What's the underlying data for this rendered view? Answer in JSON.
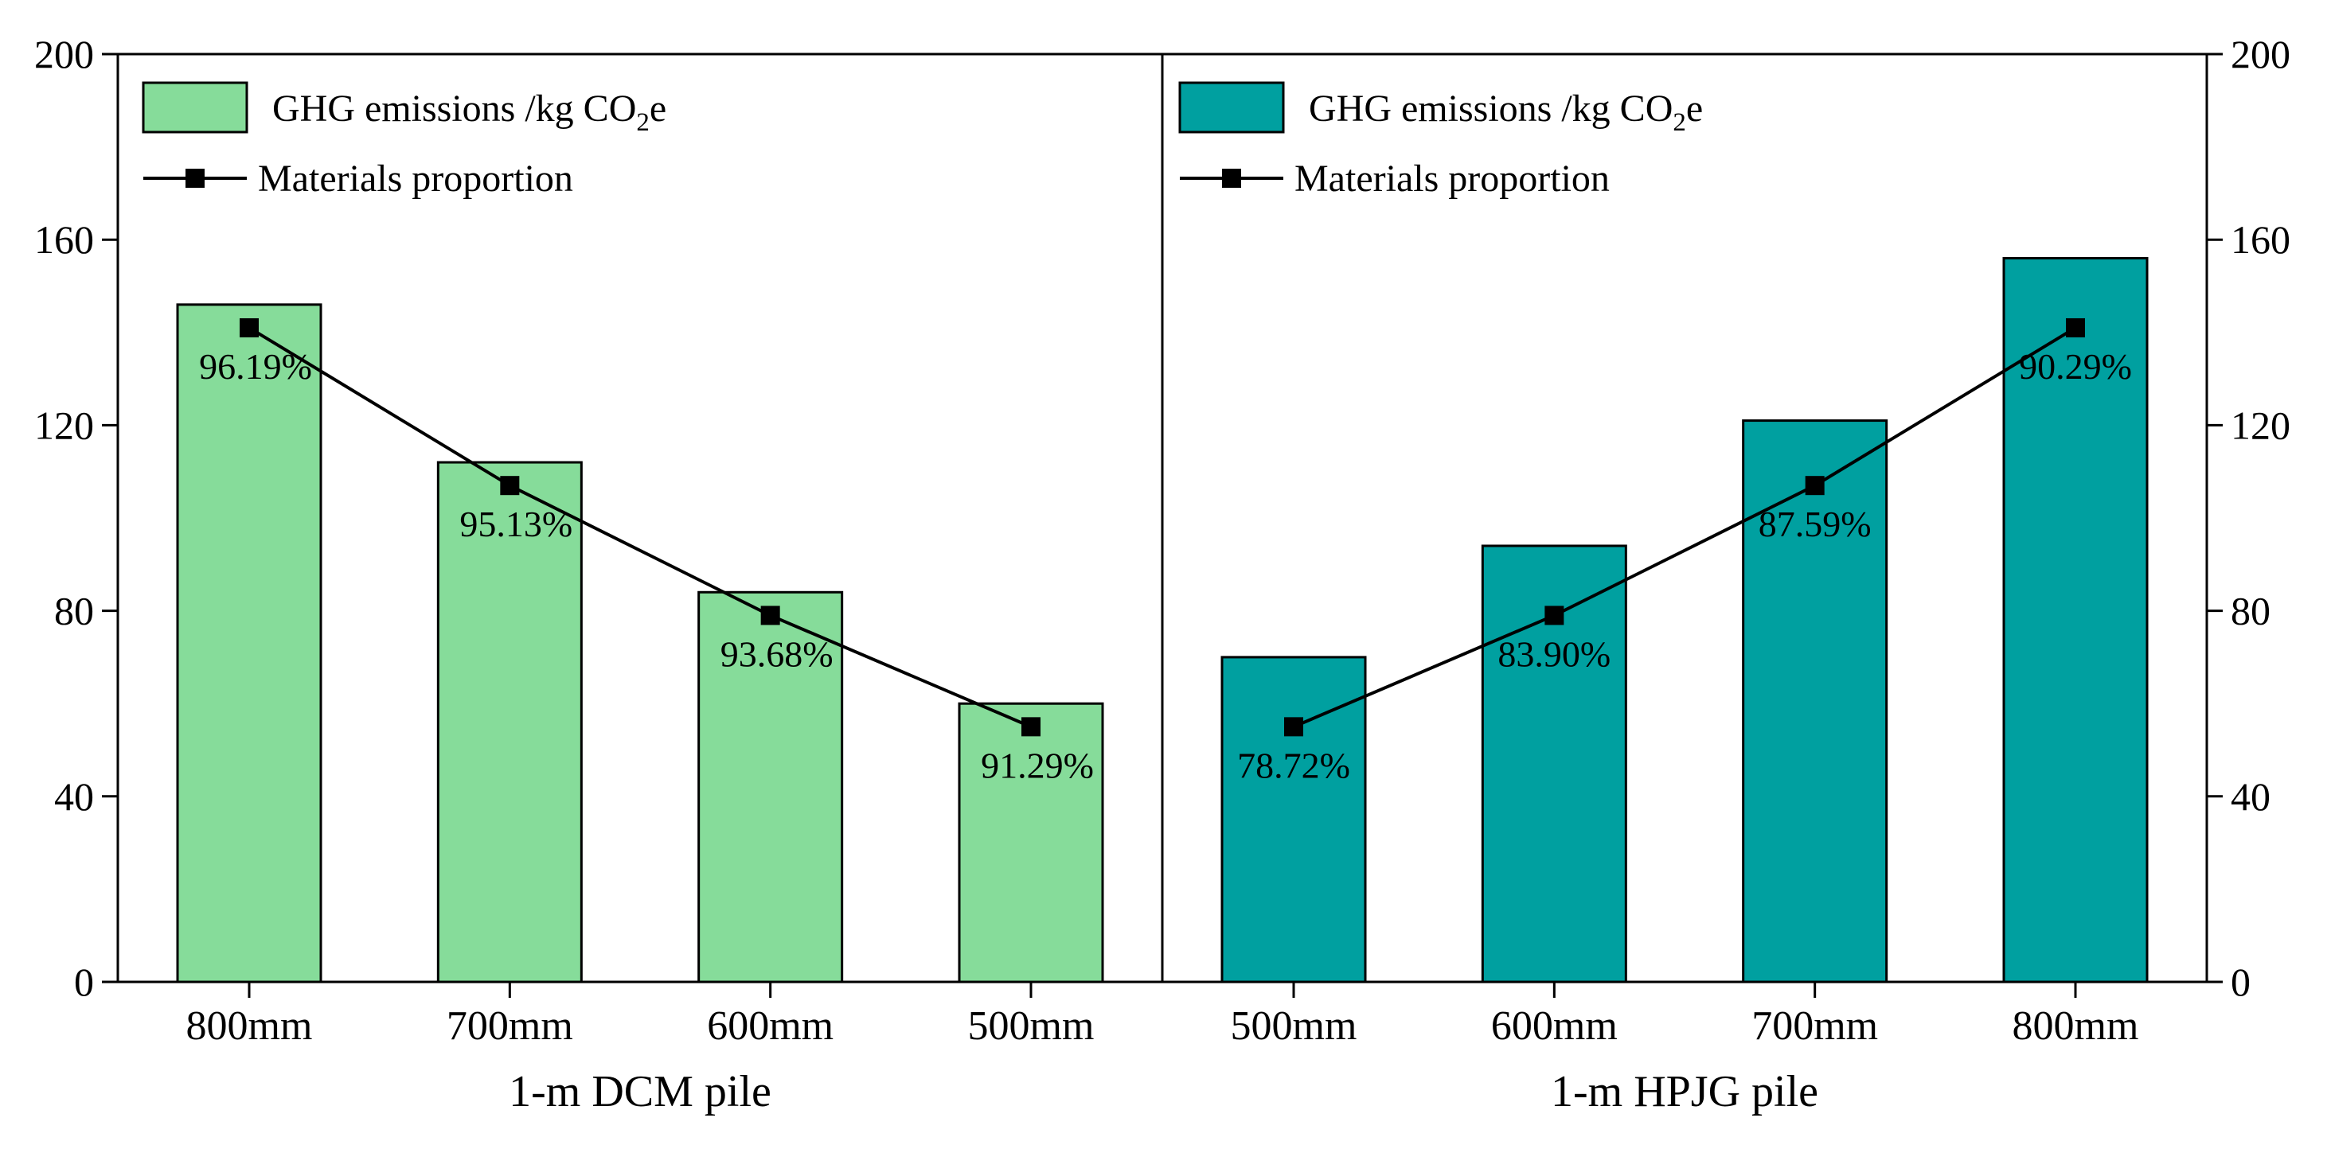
{
  "chart_data": {
    "type": "bar",
    "title": "",
    "ylim": [
      0,
      200
    ],
    "yticks": [
      0,
      40,
      80,
      120,
      160,
      200
    ],
    "grid": false,
    "panels": [
      {
        "id": "dcm",
        "xlabel": "1-m DCM pile",
        "y_axis_side": "left",
        "legend_position": "top-left",
        "categories": [
          "800mm",
          "700mm",
          "600mm",
          "500mm"
        ],
        "bar_color": "#86dc9a",
        "series": [
          {
            "name": "GHG emissions /kg CO2e",
            "name_parts": [
              "GHG emissions /kg CO",
              "2",
              "e"
            ],
            "type": "bar",
            "values": [
              146,
              112,
              84,
              60
            ]
          },
          {
            "name": "Materials proportion",
            "type": "line",
            "values": [
              141,
              107,
              79,
              55
            ],
            "labels": [
              "96.19%",
              "95.13%",
              "93.68%",
              "91.29%"
            ]
          }
        ]
      },
      {
        "id": "hpjg",
        "xlabel": "1-m HPJG pile",
        "y_axis_side": "right",
        "legend_position": "top-left",
        "categories": [
          "500mm",
          "600mm",
          "700mm",
          "800mm"
        ],
        "bar_color": "#00a0a0",
        "series": [
          {
            "name": "GHG emissions /kg CO2e",
            "name_parts": [
              "GHG emissions /kg CO",
              "2",
              "e"
            ],
            "type": "bar",
            "values": [
              70,
              94,
              121,
              156
            ]
          },
          {
            "name": "Materials proportion",
            "type": "line",
            "values": [
              55,
              79,
              107,
              141
            ],
            "labels": [
              "78.72%",
              "83.90%",
              "87.59%",
              "90.29%"
            ]
          }
        ]
      }
    ]
  }
}
